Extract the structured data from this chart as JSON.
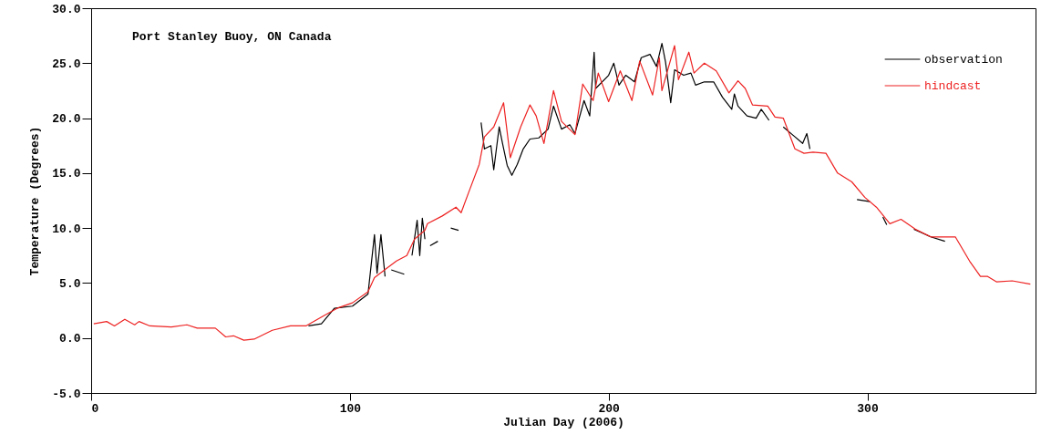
{
  "chart_data": {
    "type": "line",
    "title": "Port Stanley Buoy, ON Canada",
    "xlabel": "Julian Day (2006)",
    "ylabel": "Temperature (Degrees)",
    "xlim": [
      0,
      365
    ],
    "xticks": [
      0,
      100,
      200,
      300
    ],
    "ylim": [
      -5,
      30
    ],
    "yticks": [
      {
        "value": -5,
        "label": "-5.0"
      },
      {
        "value": 0,
        "label": "0.0"
      },
      {
        "value": 5,
        "label": "5.0"
      },
      {
        "value": 10,
        "label": "10.0"
      },
      {
        "value": 15,
        "label": "15.0"
      },
      {
        "value": 20,
        "label": "20.0"
      },
      {
        "value": 25,
        "label": "25.0"
      },
      {
        "value": 30,
        "label": "30.0"
      }
    ],
    "grid": false,
    "legend": "top right",
    "series": [
      {
        "name": "observation",
        "color": "#000000",
        "x": [
          84,
          89,
          94,
          101,
          107,
          109.5,
          110.5,
          112,
          113.6,
          114,
          116,
          121,
          123,
          124,
          126,
          127,
          128,
          129,
          129.5,
          131,
          134,
          136,
          139,
          142,
          143,
          150.7,
          152,
          154.5,
          155.6,
          157.7,
          159,
          160.8,
          162.6,
          164.7,
          167,
          169.6,
          173,
          176.6,
          178.7,
          181.8,
          185,
          187,
          190.5,
          192.7,
          194.4,
          195,
          200,
          202,
          204,
          206.6,
          210,
          212.6,
          216,
          218.5,
          220.6,
          222,
          224,
          225.5,
          229,
          231.8,
          233.6,
          237,
          240.6,
          244,
          247.6,
          248.6,
          250,
          253.5,
          257,
          259,
          262,
          263,
          267.5,
          271,
          275,
          276.6,
          277.8,
          278,
          296,
          301,
          303,
          306,
          307.5,
          308,
          318,
          324.5,
          330
        ],
        "values": [
          1.1,
          1.3,
          2.7,
          2.9,
          4.0,
          9.4,
          5.9,
          9.4,
          5.6,
          null,
          6.2,
          5.8,
          null,
          7.5,
          10.7,
          7.5,
          10.9,
          9.0,
          null,
          8.4,
          8.8,
          null,
          10.0,
          9.8,
          null,
          19.6,
          17.2,
          17.5,
          15.3,
          19.2,
          17.7,
          15.7,
          14.8,
          15.8,
          17.2,
          18.1,
          18.2,
          19.0,
          21.1,
          19.0,
          19.4,
          18.6,
          21.6,
          20.2,
          26.0,
          22.7,
          23.9,
          25.0,
          23.0,
          23.9,
          23.3,
          25.5,
          25.8,
          24.7,
          26.8,
          25.1,
          21.4,
          24.4,
          23.9,
          24.1,
          23.0,
          23.3,
          23.3,
          21.9,
          20.8,
          22.2,
          21.1,
          20.2,
          20.0,
          20.8,
          19.8,
          null,
          19.2,
          18.5,
          17.7,
          18.6,
          17.2,
          null,
          12.6,
          12.4,
          null,
          11.0,
          10.3,
          null,
          9.9,
          9.2,
          8.8
        ]
      },
      {
        "name": "hindcast",
        "color": "#ee2222",
        "x": [
          1,
          6,
          9,
          13,
          16.8,
          18.5,
          22.7,
          31,
          37,
          41,
          48,
          52,
          55,
          59,
          63,
          70,
          77,
          83,
          89,
          95,
          101,
          107,
          109.5,
          114,
          118,
          122,
          125,
          129,
          130,
          135.7,
          141,
          143,
          146,
          150,
          152,
          155.6,
          159.4,
          162,
          166,
          169.6,
          172,
          175,
          178.7,
          181.8,
          187,
          190,
          194,
          196,
          200,
          204.5,
          209,
          212,
          217,
          219.6,
          220.6,
          225.5,
          227,
          231,
          233,
          237,
          241.6,
          246.5,
          250,
          252.8,
          255.6,
          261.5,
          264.3,
          267.5,
          272,
          275.5,
          279,
          284,
          288.5,
          294,
          299,
          303.5,
          308.7,
          313,
          318.5,
          324.5,
          334,
          339.5,
          343.7,
          346.5,
          350,
          356,
          363
        ],
        "values": [
          1.3,
          1.5,
          1.1,
          1.7,
          1.2,
          1.5,
          1.1,
          1.0,
          1.2,
          0.9,
          0.9,
          0.1,
          0.2,
          -0.2,
          -0.1,
          0.7,
          1.1,
          1.1,
          1.9,
          2.7,
          3.2,
          4.2,
          5.5,
          6.3,
          7.0,
          7.5,
          9.0,
          9.8,
          10.4,
          11.1,
          11.9,
          11.4,
          13.3,
          15.8,
          18.3,
          19.2,
          21.4,
          16.4,
          19.2,
          21.2,
          20.2,
          17.7,
          22.5,
          19.7,
          18.5,
          23.1,
          21.6,
          24.1,
          21.5,
          24.3,
          21.6,
          25.2,
          22.1,
          25.5,
          22.5,
          26.6,
          23.5,
          26.0,
          24.1,
          25.0,
          24.3,
          22.3,
          23.4,
          22.7,
          21.2,
          21.1,
          20.1,
          20.0,
          17.2,
          16.8,
          16.9,
          16.8,
          15.0,
          14.2,
          12.8,
          11.9,
          10.4,
          10.8,
          9.9,
          9.2,
          9.2,
          7.0,
          5.6,
          5.6,
          5.1,
          5.2,
          4.9
        ]
      }
    ]
  }
}
